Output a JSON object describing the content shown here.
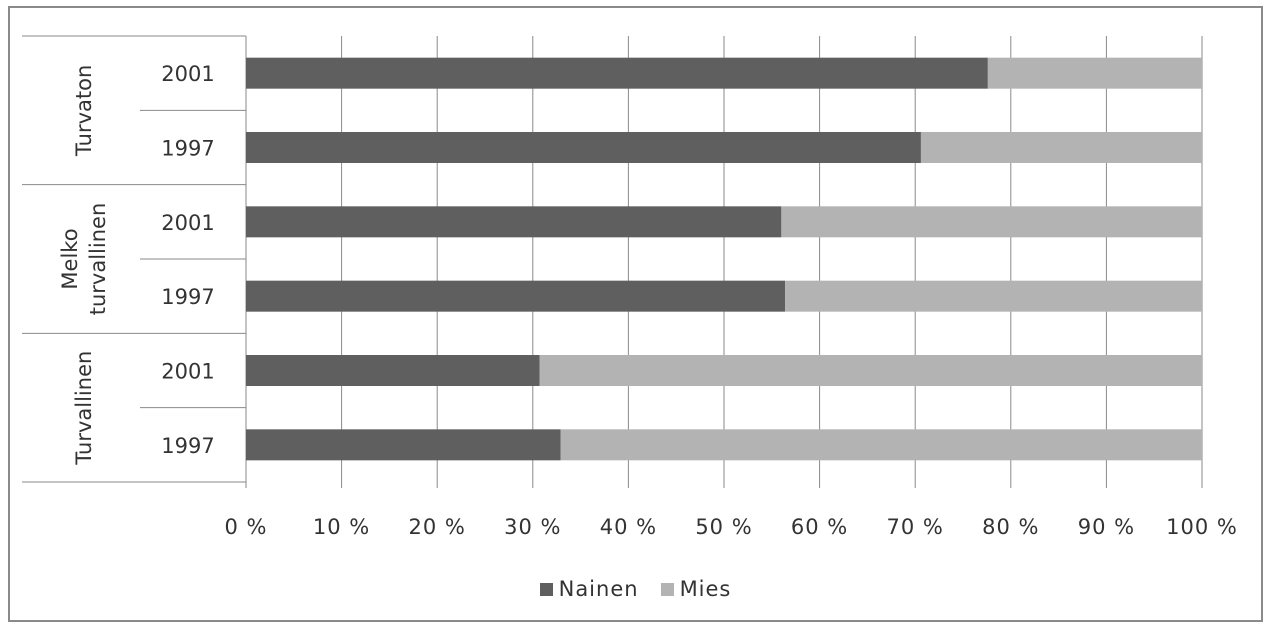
{
  "chart_data": {
    "type": "bar",
    "orientation": "horizontal",
    "stacked": "100%",
    "groups": [
      {
        "label": "Turvaton",
        "label_lines": [
          "Turvaton"
        ],
        "rows": [
          "2001",
          "1997"
        ]
      },
      {
        "label": "Melko turvallinen",
        "label_lines": [
          "Melko",
          "turvallinen"
        ],
        "rows": [
          "2001",
          "1997"
        ]
      },
      {
        "label": "Turvallinen",
        "label_lines": [
          "Turvallinen"
        ],
        "rows": [
          "2001",
          "1997"
        ]
      }
    ],
    "categories": [
      "Turvaton 2001",
      "Turvaton 1997",
      "Melko turvallinen 2001",
      "Melko turvallinen 1997",
      "Turvallinen 2001",
      "Turvallinen 1997"
    ],
    "series": [
      {
        "name": "Nainen",
        "color": "#5f5f5f",
        "values": [
          77.6,
          70.6,
          56.0,
          56.4,
          30.7,
          32.9
        ]
      },
      {
        "name": "Mies",
        "color": "#b3b3b3",
        "values": [
          22.4,
          29.4,
          44.0,
          43.6,
          69.3,
          67.1
        ]
      }
    ],
    "xlim": [
      0,
      100
    ],
    "xticks": [
      "0 %",
      "10 %",
      "20 %",
      "30 %",
      "40 %",
      "50 %",
      "60 %",
      "70 %",
      "80 %",
      "90 %",
      "100 %"
    ],
    "grid": "vertical",
    "legend_position": "bottom",
    "title": "",
    "xlabel": "",
    "ylabel": ""
  }
}
